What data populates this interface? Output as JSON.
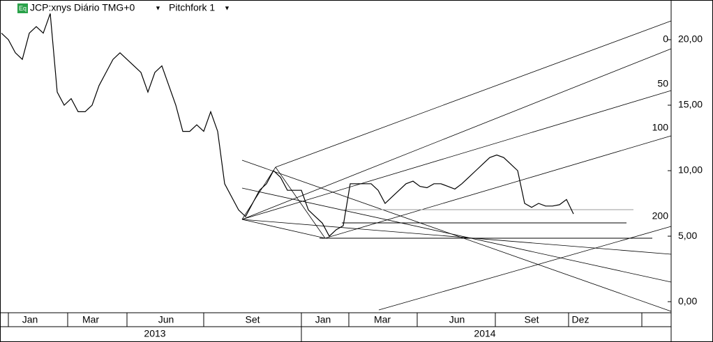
{
  "chart_data": {
    "type": "line",
    "title": "JCP:xnys Diário TMG+0",
    "subtitle": "Pitchfork 1",
    "badge": "Eq",
    "series": [
      {
        "name": "JCP",
        "color": "#000000",
        "values": [
          20.5,
          20,
          19,
          18.5,
          20.5,
          21,
          20.5,
          22,
          16,
          15,
          15.5,
          14.5,
          14.5,
          15,
          16.5,
          17.5,
          18.5,
          19,
          18.5,
          18,
          17.5,
          16,
          17.5,
          18,
          16.5,
          15,
          13,
          13,
          13.5,
          13,
          14.5,
          13,
          9,
          8,
          7,
          6.5,
          7.5,
          8.5,
          9,
          10,
          9.5,
          8.5,
          8.5,
          8.5,
          7,
          6.5,
          6,
          5,
          5.5,
          5.8,
          9,
          9,
          9,
          9,
          8.5,
          7.5,
          8,
          8.5,
          9,
          9.2,
          8.8,
          8.7,
          9,
          9,
          8.8,
          8.6,
          9,
          9.5,
          10,
          10.5,
          11,
          11.2,
          11,
          10.5,
          10,
          7.5,
          7.2,
          7.5,
          7.3,
          7.3,
          7.4,
          7.8,
          6.7
        ]
      }
    ],
    "ylim": [
      -0.74,
      23.03
    ],
    "yticks": [
      {
        "value": 0,
        "label": "0,00"
      },
      {
        "value": 5,
        "label": "5,00"
      },
      {
        "value": 10,
        "label": "10,00"
      },
      {
        "value": 15,
        "label": "15,00"
      },
      {
        "value": 20,
        "label": "20,00"
      }
    ],
    "months": [
      "Jan",
      "Mar",
      "Jun",
      "Set",
      "Jan",
      "Mar",
      "Jun",
      "Set",
      "Dez"
    ],
    "years": [
      "2013",
      "2014"
    ],
    "pitchfork_levels": [
      "0",
      "50",
      "100",
      "200"
    ]
  }
}
